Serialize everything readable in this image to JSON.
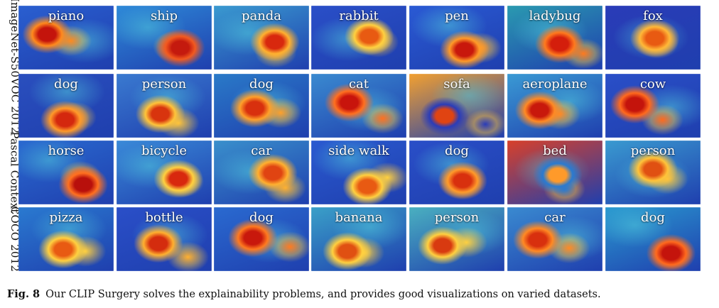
{
  "figure": {
    "rows": [
      {
        "label": "ImageNet-S50",
        "tiles": [
          {
            "label": "piano",
            "bg": "#2a5fd0",
            "hot": [
              "#c4140c",
              "#ff8a1e"
            ]
          },
          {
            "label": "ship",
            "bg": "#2e8ad8",
            "hot": [
              "#c41a0e",
              "#f25a20"
            ]
          },
          {
            "label": "panda",
            "bg": "#3a9ad0",
            "hot": [
              "#d8280e",
              "#ffb030"
            ]
          },
          {
            "label": "rabbit",
            "bg": "#2a4fc8",
            "hot": [
              "#e85a12",
              "#ffd040"
            ]
          },
          {
            "label": "pen",
            "bg": "#2a5ad4",
            "hot": [
              "#c8180c",
              "#ff9a28"
            ]
          },
          {
            "label": "ladybug",
            "bg": "#2a9ab0",
            "hot": [
              "#d41e0c",
              "#ff7a1e"
            ]
          },
          {
            "label": "fox",
            "bg": "#2a3cb8",
            "hot": [
              "#e85a12",
              "#ffb838"
            ]
          }
        ]
      },
      {
        "label": "VOC 2012",
        "tiles": [
          {
            "label": "dog",
            "bg": "#2a4fbe",
            "hot": [
              "#d4280e",
              "#ff9a2a"
            ]
          },
          {
            "label": "person",
            "bg": "#3a7ad0",
            "hot": [
              "#d8340e",
              "#ffc43a"
            ]
          },
          {
            "label": "dog",
            "bg": "#2a7ac8",
            "hot": [
              "#d8300e",
              "#ffa02a"
            ]
          },
          {
            "label": "cat",
            "bg": "#3a8ad0",
            "hot": [
              "#c8140c",
              "#ff7020"
            ]
          },
          {
            "label": "sofa",
            "bg": "#f2a030",
            "hot": [
              "#e04412",
              "#2a3cb8"
            ]
          },
          {
            "label": "aeroplane",
            "bg": "#3a9ad4",
            "hot": [
              "#c8180c",
              "#ff8a24"
            ]
          },
          {
            "label": "cow",
            "bg": "#2a4fc8",
            "hot": [
              "#c4140c",
              "#ff6a1e"
            ]
          }
        ]
      },
      {
        "label": "Pascal Context",
        "tiles": [
          {
            "label": "horse",
            "bg": "#2a6ad0",
            "hot": [
              "#b8100c",
              "#ff7020"
            ]
          },
          {
            "label": "bicycle",
            "bg": "#3a8ad8",
            "hot": [
              "#d8280e",
              "#ffd040"
            ]
          },
          {
            "label": "car",
            "bg": "#3a90cc",
            "hot": [
              "#e04412",
              "#ffb030"
            ]
          },
          {
            "label": "side walk",
            "bg": "#2a5ad0",
            "hot": [
              "#e85a12",
              "#ffd040"
            ]
          },
          {
            "label": "dog",
            "bg": "#2a4fc8",
            "hot": [
              "#d8300e",
              "#ff9a2a"
            ]
          },
          {
            "label": "bed",
            "bg": "#d8402a",
            "hot": [
              "#ff9a2a",
              "#2a7ad0"
            ]
          },
          {
            "label": "person",
            "bg": "#3a9ad0",
            "hot": [
              "#e05012",
              "#ffc43a"
            ]
          }
        ]
      },
      {
        "label": "COCO 2012",
        "tiles": [
          {
            "label": "pizza",
            "bg": "#2a7ad0",
            "hot": [
              "#e85a12",
              "#ffd040"
            ]
          },
          {
            "label": "bottle",
            "bg": "#2a4fc8",
            "hot": [
              "#d42c0e",
              "#ffb030"
            ]
          },
          {
            "label": "dog",
            "bg": "#2a6ad0",
            "hot": [
              "#c8180c",
              "#ff7a20"
            ]
          },
          {
            "label": "banana",
            "bg": "#3aa0c8",
            "hot": [
              "#e05012",
              "#ffd040"
            ]
          },
          {
            "label": "person",
            "bg": "#4ab0c0",
            "hot": [
              "#d83a10",
              "#ffd040"
            ]
          },
          {
            "label": "car",
            "bg": "#3a8ad0",
            "hot": [
              "#d8300e",
              "#ff8a24"
            ]
          },
          {
            "label": "dog",
            "bg": "#2a9ad0",
            "hot": [
              "#c4140c",
              "#ff6a1e"
            ]
          }
        ]
      }
    ]
  },
  "caption": {
    "fig_number": "Fig. 8",
    "text": "Our CLIP Surgery solves the explainability problems, and provides good visualizations on varied datasets."
  }
}
